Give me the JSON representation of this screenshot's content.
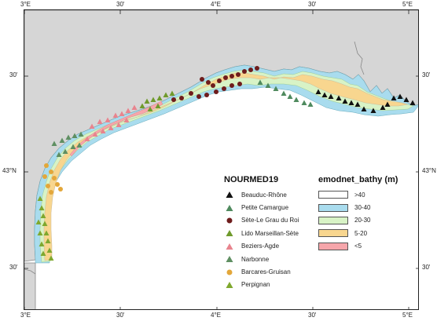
{
  "axes": {
    "top_ticks": [
      "3°E",
      "30'",
      "4°E",
      "30'",
      "5°E"
    ],
    "bottom_ticks": [
      "3°E",
      "30'",
      "4°E",
      "30'",
      "5°E"
    ],
    "left_ticks": [
      "30'",
      "43°N",
      "30'"
    ],
    "right_ticks": [
      "30'",
      "43°N",
      "30'"
    ]
  },
  "legend_sites": {
    "title": "NOURMED19",
    "items": [
      {
        "label": "Beauduc-Rhône",
        "symbol": "triangle",
        "color": "#111111"
      },
      {
        "label": "Petite Camargue",
        "symbol": "triangle",
        "color": "#4f8a5e"
      },
      {
        "label": "Sète-Le Grau du Roi",
        "symbol": "circle",
        "color": "#6e1c1c"
      },
      {
        "label": "Lido Marseillan-Sète",
        "symbol": "triangle",
        "color": "#6f9a2c"
      },
      {
        "label": "Beziers-Agde",
        "symbol": "triangle",
        "color": "#e8848e"
      },
      {
        "label": "Narbonne",
        "symbol": "triangle",
        "color": "#5f8f62"
      },
      {
        "label": "Barcares-Gruisan",
        "symbol": "circle",
        "color": "#e3a73a"
      },
      {
        "label": "Perpignan",
        "symbol": "triangle",
        "color": "#7fa82e"
      }
    ]
  },
  "legend_bathy": {
    "title": "emodnet_bathy (m)",
    "items": [
      {
        "label": ">40",
        "color": "#ffffff"
      },
      {
        "label": "30-40",
        "color": "#a9dcee"
      },
      {
        "label": "20-30",
        "color": "#d8f3c6"
      },
      {
        "label": "5-20",
        "color": "#f8d68f"
      },
      {
        "label": "<5",
        "color": "#f6a6ab"
      }
    ]
  },
  "colors": {
    "land": "#d6d6d6",
    "sea": "#ffffff",
    "frame": "#222222"
  }
}
